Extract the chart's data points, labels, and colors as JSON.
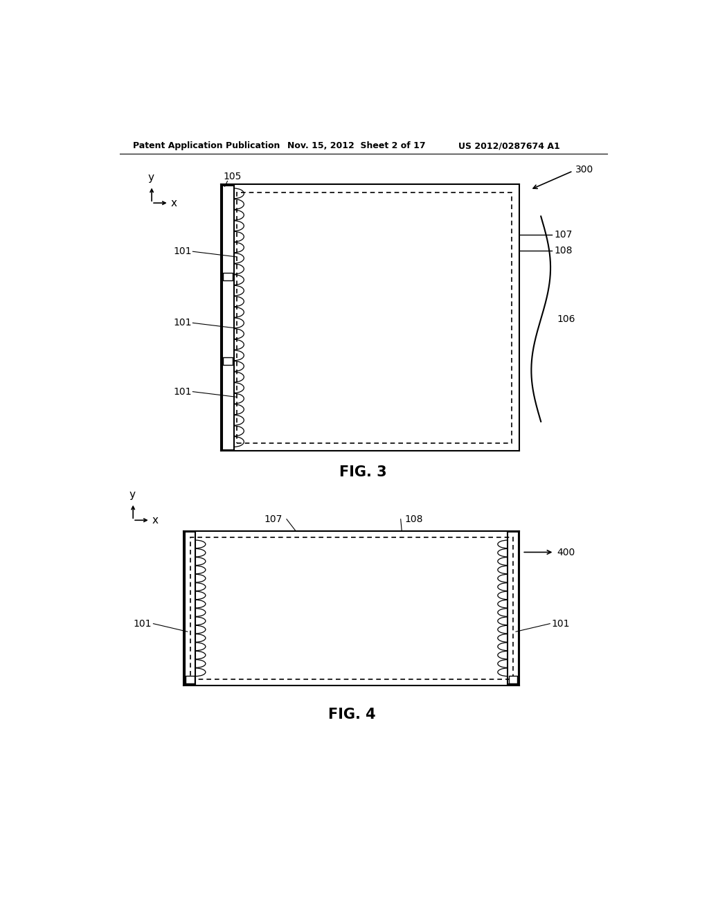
{
  "bg_color": "#ffffff",
  "header_left": "Patent Application Publication",
  "header_mid": "Nov. 15, 2012  Sheet 2 of 17",
  "header_right": "US 2012/0287674 A1",
  "fig3_label": "FIG. 3",
  "fig4_label": "FIG. 4",
  "line_color": "#000000",
  "dashed_color": "#000000",
  "text_color": "#000000"
}
